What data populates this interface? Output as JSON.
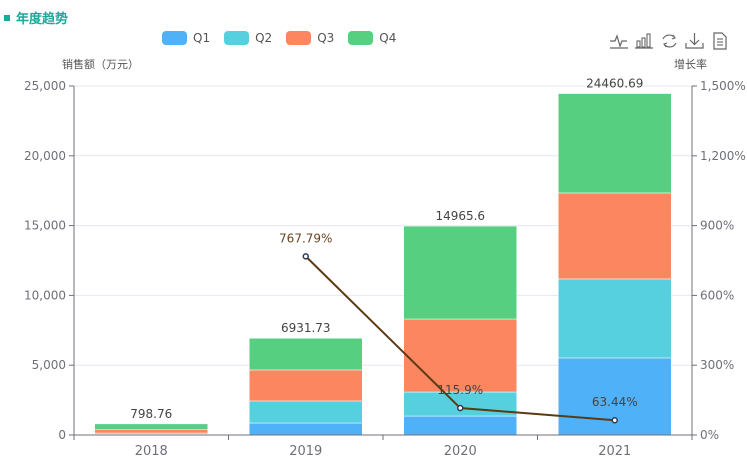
{
  "title": "年度趋势",
  "toolbar": {
    "icons": [
      "line-chart-icon",
      "bar-chart-icon",
      "restore-icon",
      "download-icon",
      "data-view-icon"
    ]
  },
  "chart_data": {
    "type": "bar",
    "stacked": true,
    "categories": [
      "2018",
      "2019",
      "2020",
      "2021"
    ],
    "series": [
      {
        "name": "Q1",
        "color": "#4fb1f7",
        "values": [
          60,
          860,
          1360,
          5520
        ]
      },
      {
        "name": "Q2",
        "color": "#56cfde",
        "values": [
          80,
          1580,
          1720,
          5660
        ]
      },
      {
        "name": "Q3",
        "color": "#fc8660",
        "values": [
          240,
          2220,
          5230,
          6160
        ]
      },
      {
        "name": "Q4",
        "color": "#57cf80",
        "values": [
          418.76,
          2271.73,
          6655.6,
          7120.69
        ]
      }
    ],
    "totals": [
      "798.76",
      "6931.73",
      "14965.6",
      "24460.69"
    ],
    "line": {
      "name": "增长率",
      "color": "#5c3a14",
      "values": [
        null,
        767.79,
        115.9,
        63.44
      ],
      "labels": [
        "",
        "767.79%",
        "115.9%",
        "63.44%"
      ]
    },
    "ylabel_left": "销售额（万元）",
    "ylabel_right": "增长率",
    "ylim_left": [
      0,
      25000
    ],
    "ylim_right": [
      0,
      1500
    ],
    "yticks_left": [
      "0",
      "5,000",
      "10,000",
      "15,000",
      "20,000",
      "25,000"
    ],
    "yticks_right": [
      "0%",
      "300%",
      "600%",
      "900%",
      "1,200%",
      "1,500%"
    ],
    "grid": true,
    "legend": "top-center"
  }
}
